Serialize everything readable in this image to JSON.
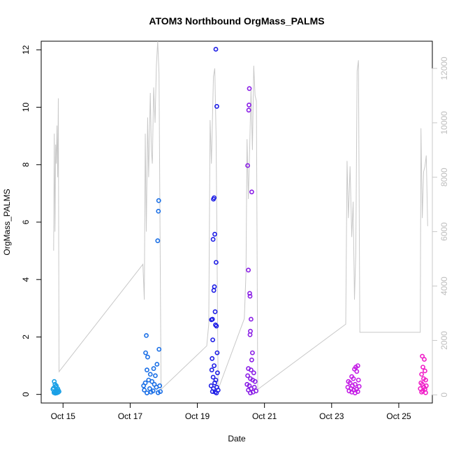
{
  "chart_data": {
    "type": "scatter",
    "title": "ATOM3 Northbound OrgMass_PALMS",
    "xlabel": "Date",
    "ylabel": "OrgMass_PALMS",
    "x_ticks": [
      "Oct 15",
      "Oct 17",
      "Oct 19",
      "Oct 21",
      "Oct 23",
      "Oct 25"
    ],
    "x_tick_days": [
      15,
      17,
      19,
      21,
      23,
      25
    ],
    "xlim_days": [
      14.35,
      26.0
    ],
    "ylim": [
      -0.3,
      12.3
    ],
    "y_ticks": [
      0,
      2,
      4,
      6,
      8,
      10,
      12
    ],
    "y2lim": [
      -300,
      13000
    ],
    "y2_ticks": [
      0,
      2000,
      4000,
      6000,
      8000,
      10000,
      12000
    ],
    "y2_color": "#c8c8c8",
    "grid": false,
    "series": [
      {
        "color": "#1aa0e6",
        "points": [
          [
            14.74,
            0.45
          ],
          [
            14.76,
            0.35
          ],
          [
            14.78,
            0.28
          ],
          [
            14.8,
            0.3
          ],
          [
            14.72,
            0.22
          ],
          [
            14.7,
            0.18
          ],
          [
            14.84,
            0.2
          ],
          [
            14.86,
            0.15
          ],
          [
            14.82,
            0.12
          ],
          [
            14.75,
            0.1
          ],
          [
            14.79,
            0.08
          ],
          [
            14.88,
            0.1
          ],
          [
            14.73,
            0.06
          ],
          [
            14.81,
            0.05
          ],
          [
            14.77,
            0.04
          ],
          [
            14.85,
            0.07
          ]
        ]
      },
      {
        "color": "#1a6fe6",
        "points": [
          [
            17.48,
            2.05
          ],
          [
            17.46,
            1.45
          ],
          [
            17.52,
            1.3
          ],
          [
            17.85,
            6.75
          ],
          [
            17.84,
            6.38
          ],
          [
            17.82,
            5.35
          ],
          [
            17.86,
            1.57
          ],
          [
            17.5,
            0.85
          ],
          [
            17.6,
            0.7
          ],
          [
            17.7,
            0.9
          ],
          [
            17.8,
            1.05
          ],
          [
            17.75,
            0.65
          ],
          [
            17.4,
            0.3
          ],
          [
            17.45,
            0.4
          ],
          [
            17.55,
            0.5
          ],
          [
            17.65,
            0.45
          ],
          [
            17.72,
            0.35
          ],
          [
            17.88,
            0.3
          ],
          [
            17.42,
            0.15
          ],
          [
            17.58,
            0.2
          ],
          [
            17.68,
            0.12
          ],
          [
            17.78,
            0.25
          ],
          [
            17.9,
            0.1
          ],
          [
            17.62,
            0.08
          ],
          [
            17.5,
            0.05
          ],
          [
            17.83,
            0.06
          ]
        ]
      },
      {
        "color": "#1e1ee6",
        "points": [
          [
            19.55,
            12.02
          ],
          [
            19.58,
            10.03
          ],
          [
            19.5,
            6.85
          ],
          [
            19.48,
            6.8
          ],
          [
            19.52,
            5.58
          ],
          [
            19.47,
            5.4
          ],
          [
            19.56,
            4.6
          ],
          [
            19.51,
            3.75
          ],
          [
            19.49,
            3.62
          ],
          [
            19.53,
            2.88
          ],
          [
            19.45,
            2.62
          ],
          [
            19.42,
            2.6
          ],
          [
            19.54,
            2.42
          ],
          [
            19.57,
            2.38
          ],
          [
            19.46,
            1.9
          ],
          [
            19.59,
            1.45
          ],
          [
            19.44,
            1.25
          ],
          [
            19.5,
            1.0
          ],
          [
            19.43,
            0.85
          ],
          [
            19.6,
            0.75
          ],
          [
            19.47,
            0.6
          ],
          [
            19.55,
            0.5
          ],
          [
            19.52,
            0.4
          ],
          [
            19.41,
            0.3
          ],
          [
            19.58,
            0.25
          ],
          [
            19.48,
            0.2
          ],
          [
            19.62,
            0.15
          ],
          [
            19.45,
            0.1
          ],
          [
            19.53,
            0.08
          ],
          [
            19.57,
            0.05
          ]
        ]
      },
      {
        "color": "#8a1ee6",
        "points": [
          [
            20.55,
            10.65
          ],
          [
            20.54,
            10.08
          ],
          [
            20.53,
            9.9
          ],
          [
            20.5,
            7.97
          ],
          [
            20.62,
            7.05
          ],
          [
            20.52,
            4.33
          ],
          [
            20.56,
            3.52
          ],
          [
            20.57,
            3.42
          ],
          [
            20.6,
            2.62
          ],
          [
            20.58,
            2.2
          ],
          [
            20.57,
            2.08
          ],
          [
            20.64,
            1.45
          ],
          [
            20.62,
            1.2
          ],
          [
            20.52,
            0.9
          ],
          [
            20.6,
            0.85
          ],
          [
            20.68,
            0.75
          ],
          [
            20.5,
            0.65
          ],
          [
            20.58,
            0.55
          ],
          [
            20.65,
            0.5
          ],
          [
            20.72,
            0.45
          ],
          [
            20.48,
            0.35
          ],
          [
            20.55,
            0.3
          ],
          [
            20.7,
            0.25
          ],
          [
            20.6,
            0.2
          ],
          [
            20.52,
            0.15
          ],
          [
            20.75,
            0.12
          ],
          [
            20.66,
            0.08
          ],
          [
            20.58,
            0.05
          ]
        ]
      },
      {
        "color": "#c41ee6",
        "points": [
          [
            23.78,
            1.0
          ],
          [
            23.72,
            0.95
          ],
          [
            23.68,
            0.88
          ],
          [
            23.75,
            0.8
          ],
          [
            23.6,
            0.62
          ],
          [
            23.65,
            0.55
          ],
          [
            23.8,
            0.5
          ],
          [
            23.5,
            0.45
          ],
          [
            23.55,
            0.4
          ],
          [
            23.7,
            0.35
          ],
          [
            23.62,
            0.3
          ],
          [
            23.82,
            0.28
          ],
          [
            23.48,
            0.25
          ],
          [
            23.58,
            0.2
          ],
          [
            23.74,
            0.18
          ],
          [
            23.66,
            0.15
          ],
          [
            23.52,
            0.12
          ],
          [
            23.78,
            0.1
          ],
          [
            23.6,
            0.08
          ],
          [
            23.7,
            0.05
          ]
        ]
      },
      {
        "color": "#f01ec8",
        "points": [
          [
            25.7,
            1.33
          ],
          [
            25.76,
            1.22
          ],
          [
            25.72,
            0.95
          ],
          [
            25.78,
            0.82
          ],
          [
            25.68,
            0.7
          ],
          [
            25.74,
            0.55
          ],
          [
            25.8,
            0.5
          ],
          [
            25.66,
            0.4
          ],
          [
            25.7,
            0.35
          ],
          [
            25.82,
            0.3
          ],
          [
            25.75,
            0.25
          ],
          [
            25.64,
            0.2
          ],
          [
            25.78,
            0.18
          ],
          [
            25.72,
            0.12
          ],
          [
            25.68,
            0.08
          ],
          [
            25.8,
            0.06
          ]
        ]
      }
    ],
    "secondary_line": {
      "color": "#c8c8c8",
      "points": [
        [
          14.72,
          5300
        ],
        [
          14.74,
          9600
        ],
        [
          14.76,
          6000
        ],
        [
          14.78,
          9200
        ],
        [
          14.8,
          8500
        ],
        [
          14.82,
          9900
        ],
        [
          14.84,
          8000
        ],
        [
          14.86,
          10900
        ],
        [
          14.88,
          850
        ],
        [
          17.38,
          4800
        ],
        [
          17.42,
          3500
        ],
        [
          17.45,
          9600
        ],
        [
          17.48,
          6000
        ],
        [
          17.52,
          10200
        ],
        [
          17.55,
          8000
        ],
        [
          17.6,
          11100
        ],
        [
          17.63,
          9000
        ],
        [
          17.66,
          8500
        ],
        [
          17.7,
          11300
        ],
        [
          17.74,
          10000
        ],
        [
          17.78,
          12100
        ],
        [
          17.82,
          13000
        ],
        [
          17.86,
          11800
        ],
        [
          17.92,
          200
        ],
        [
          19.28,
          1800
        ],
        [
          19.34,
          2600
        ],
        [
          19.38,
          10100
        ],
        [
          19.42,
          8500
        ],
        [
          19.48,
          11700
        ],
        [
          19.52,
          12000
        ],
        [
          19.56,
          9500
        ],
        [
          19.62,
          200
        ],
        [
          20.4,
          2800
        ],
        [
          20.45,
          4500
        ],
        [
          20.48,
          9400
        ],
        [
          20.52,
          7200
        ],
        [
          20.56,
          9100
        ],
        [
          20.6,
          11200
        ],
        [
          20.64,
          9000
        ],
        [
          20.68,
          12100
        ],
        [
          20.72,
          11000
        ],
        [
          20.76,
          10800
        ],
        [
          20.8,
          200
        ],
        [
          23.42,
          2600
        ],
        [
          23.46,
          8600
        ],
        [
          23.5,
          6500
        ],
        [
          23.55,
          8400
        ],
        [
          23.6,
          5800
        ],
        [
          23.64,
          7100
        ],
        [
          23.68,
          3500
        ],
        [
          23.72,
          5200
        ],
        [
          23.76,
          11900
        ],
        [
          23.8,
          12300
        ],
        [
          23.84,
          2300
        ],
        [
          25.64,
          2300
        ],
        [
          25.66,
          9800
        ],
        [
          25.7,
          6500
        ],
        [
          25.74,
          8200
        ],
        [
          25.78,
          8400
        ],
        [
          25.82,
          8800
        ],
        [
          25.86,
          6200
        ]
      ]
    }
  }
}
